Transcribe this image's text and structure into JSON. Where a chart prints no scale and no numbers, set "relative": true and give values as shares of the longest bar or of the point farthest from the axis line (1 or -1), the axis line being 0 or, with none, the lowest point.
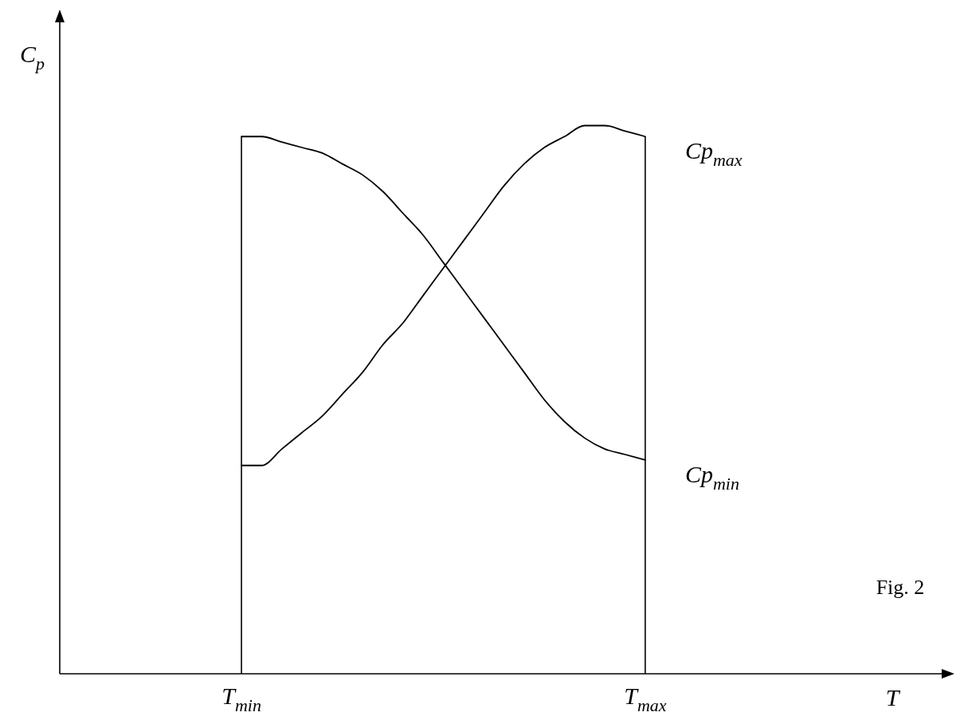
{
  "chart_data": {
    "type": "line",
    "relative": true,
    "xlabel": "T",
    "ylabel": "C$_{p}$",
    "categories": [
      null,
      null,
      null,
      null,
      null,
      null,
      null,
      null,
      null,
      "T$_{min}$",
      null,
      null,
      null,
      null,
      null,
      null,
      null,
      null,
      null,
      null,
      null,
      null,
      null,
      null,
      null,
      null,
      null,
      null,
      null,
      "T$_{max}$",
      null,
      null,
      null,
      null,
      null,
      null,
      null,
      null,
      null,
      null,
      null,
      null,
      null,
      null,
      null
    ],
    "series": [
      {
        "name": "Cp$_{max}$",
        "color": "#000000",
        "values": [
          null,
          null,
          null,
          null,
          null,
          null,
          null,
          null,
          null,
          0.38,
          0.38,
          0.41,
          0.44,
          0.47,
          0.51,
          0.55,
          0.6,
          0.64,
          0.69,
          0.74,
          0.79,
          0.84,
          0.89,
          0.93,
          0.96,
          0.98,
          1.0,
          1.0,
          0.99,
          0.98,
          null,
          null,
          null,
          null,
          null,
          null,
          null,
          null,
          null,
          null,
          null,
          null,
          null,
          null,
          null
        ]
      },
      {
        "name": "Cp$_{min}$",
        "color": "#000000",
        "values": [
          null,
          null,
          null,
          null,
          null,
          null,
          null,
          null,
          null,
          0.98,
          0.98,
          0.97,
          0.96,
          0.95,
          0.93,
          0.91,
          0.88,
          0.84,
          0.8,
          0.75,
          0.7,
          0.65,
          0.6,
          0.55,
          0.5,
          0.46,
          0.43,
          0.41,
          0.4,
          0.39,
          null,
          null,
          null,
          null,
          null,
          null,
          null,
          null,
          null,
          null,
          null,
          null,
          null,
          null,
          null
        ]
      }
    ],
    "ref_lines": [
      {
        "axis": "x",
        "value": "T$_{min}$",
        "color": "#000000"
      },
      {
        "axis": "x",
        "value": "T$_{max}$",
        "color": "#000000"
      }
    ],
    "annotations": [
      "Fig. 2"
    ],
    "tick_labels": "x",
    "grid": false,
    "legend": false,
    "marker": "none",
    "line_style": "solid"
  }
}
